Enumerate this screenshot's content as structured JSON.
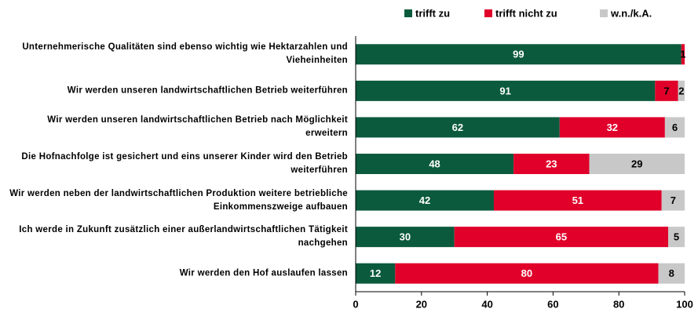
{
  "chart_data": {
    "type": "stacked_bar_horizontal",
    "categories": [
      "Unternehmerische Qualitäten sind ebenso wichtig wie Hektarzahlen und Vieheinheiten",
      "Wir werden unseren landwirtschaftlichen Betrieb weiterführen",
      "Wir werden unseren landwirtschaftlichen Betrieb nach Möglichkeit erweitern",
      "Die Hofnachfolge ist gesichert und eins unserer Kinder wird den Betrieb weiterführen",
      "Wir werden neben der landwirtschaftlichen Produktion weitere betriebliche Einkommenszweige aufbauen",
      "Ich werde in Zukunft zusätzlich einer außerlandwirtschaftlichen Tätigkeit nachgehen",
      "Wir werden den Hof auslaufen lassen"
    ],
    "series": [
      {
        "name": "trifft zu",
        "color": "#0b5a3d",
        "values": [
          99,
          91,
          62,
          48,
          42,
          30,
          12
        ]
      },
      {
        "name": "trifft nicht zu",
        "color": "#e0002a",
        "values": [
          1,
          7,
          32,
          23,
          51,
          65,
          80
        ]
      },
      {
        "name": "w.n./k.A.",
        "color": "#c8c8c8",
        "values": [
          null,
          2,
          6,
          29,
          7,
          5,
          8
        ]
      }
    ],
    "xlim": [
      0,
      100
    ],
    "xticks": [
      0,
      20,
      40,
      60,
      80,
      100
    ]
  }
}
